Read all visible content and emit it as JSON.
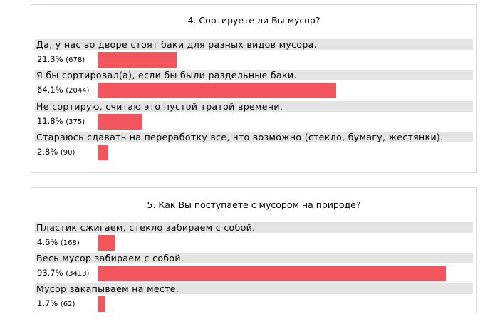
{
  "polls": [
    {
      "title": "4. Сортируете ли Вы мусор?",
      "options": [
        {
          "label": "Да, у нас во дворе стоят баки для разных видов мусора.",
          "percent_text": "21.3%",
          "count_text": "(678)"
        },
        {
          "label": "Я бы сортировал(а), если бы были раздельные баки.",
          "percent_text": "64.1%",
          "count_text": "(2044)"
        },
        {
          "label": "Не сортирую, считаю это пустой тратой времени.",
          "percent_text": "11.8%",
          "count_text": "(375)"
        },
        {
          "label": "Стараюсь сдавать на переработку все, что возможно (стекло, бумагу, жестянки).",
          "percent_text": "2.8%",
          "count_text": "(90)"
        }
      ]
    },
    {
      "title": "5. Как Вы поступаете с мусором на природе?",
      "options": [
        {
          "label": "Пластик сжигаем, стекло забираем с собой.",
          "percent_text": "4.6%",
          "count_text": "(168)"
        },
        {
          "label": "Весь мусор забираем с собой.",
          "percent_text": "93.7%",
          "count_text": "(3413)"
        },
        {
          "label": "Мусор закапываем на месте.",
          "percent_text": "1.7%",
          "count_text": "(62)"
        }
      ]
    }
  ],
  "chart_data": [
    {
      "type": "bar",
      "title": "4. Сортируете ли Вы мусор?",
      "categories": [
        "Да, у нас во дворе стоят баки для разных видов мусора.",
        "Я бы сортировал(а), если бы были раздельные баки.",
        "Не сортирую, считаю это пустой тратой времени.",
        "Стараюсь сдавать на переработку все, что возможно (стекло, бумагу, жестянки)."
      ],
      "values": [
        21.3,
        64.1,
        11.8,
        2.8
      ],
      "counts": [
        678,
        2044,
        375,
        90
      ],
      "bar_color": "#f2555c"
    },
    {
      "type": "bar",
      "title": "5. Как Вы поступаете с мусором на природе?",
      "categories": [
        "Пластик сжигаем, стекло забираем с собой.",
        "Весь мусор забираем с собой.",
        "Мусор закапываем на месте."
      ],
      "values": [
        4.6,
        93.7,
        1.7
      ],
      "counts": [
        168,
        3413,
        62
      ],
      "bar_color": "#f2555c"
    }
  ]
}
